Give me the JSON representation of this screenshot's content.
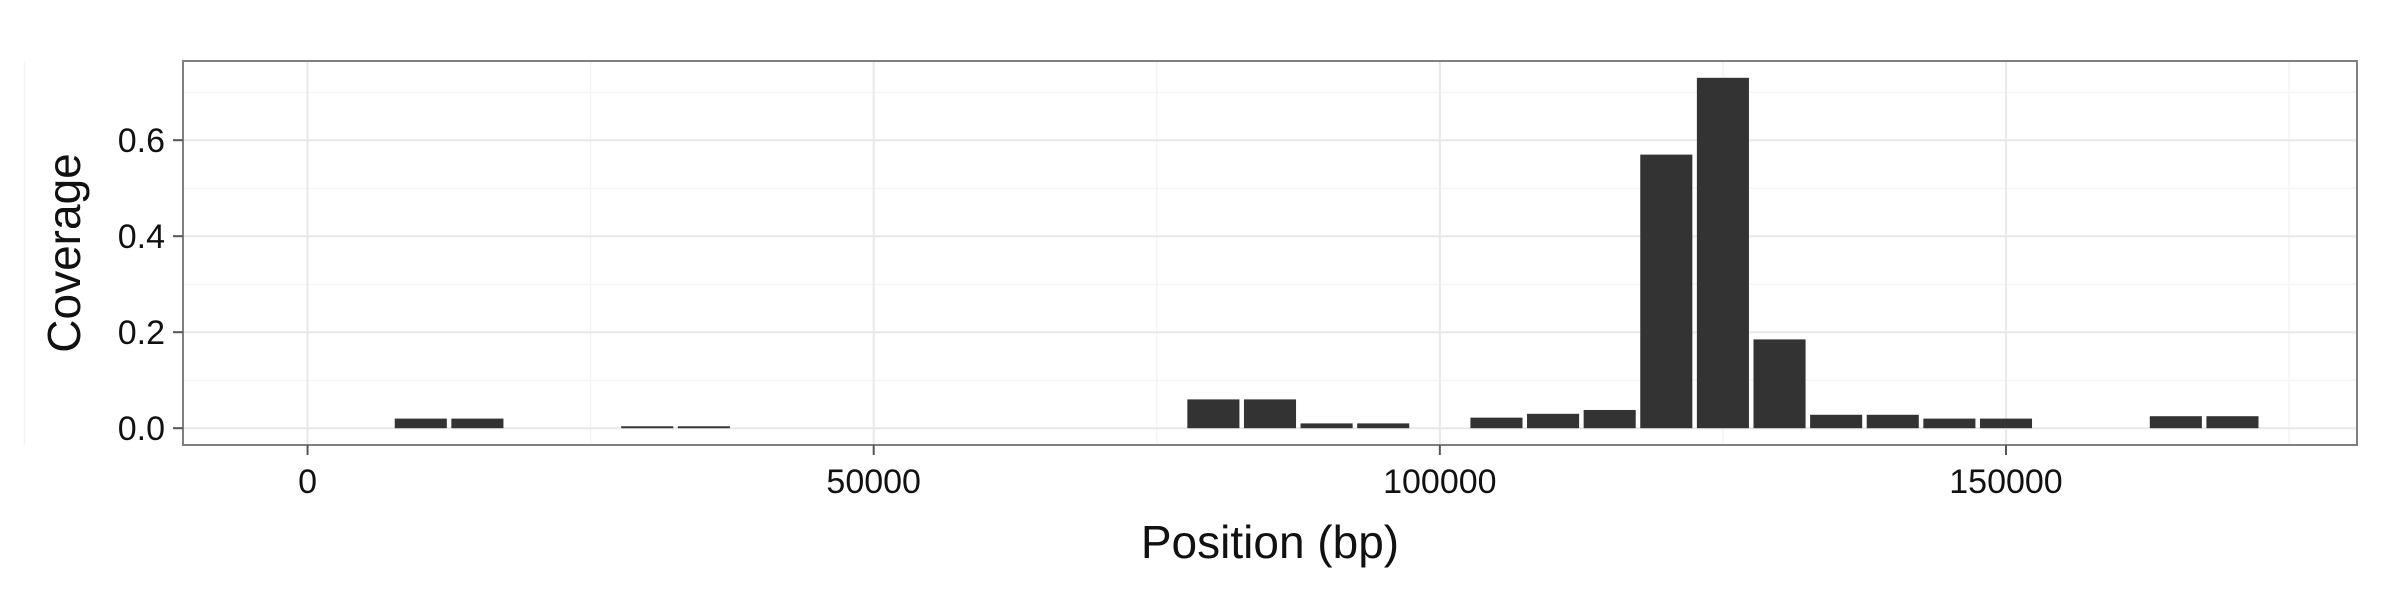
{
  "chart_data": {
    "type": "bar",
    "xlabel": "Position (bp)",
    "ylabel": "Coverage",
    "xlim": [
      -11000,
      181000
    ],
    "ylim": [
      -0.035,
      0.765
    ],
    "x_ticks": [
      0,
      50000,
      100000,
      150000
    ],
    "y_ticks": [
      0.0,
      0.2,
      0.4,
      0.6
    ],
    "x_tick_labels": [
      "0",
      "50000",
      "100000",
      "150000"
    ],
    "y_tick_labels": [
      "0.0",
      "0.2",
      "0.4",
      "0.6"
    ],
    "bar_width": 4600,
    "grid": true,
    "bar_color": "#333333",
    "x": [
      10000,
      15000,
      30000,
      35000,
      80000,
      85000,
      90000,
      95000,
      105000,
      110000,
      115000,
      120000,
      125000,
      130000,
      135000,
      140000,
      145000,
      150000,
      165000,
      170000
    ],
    "values": [
      0.02,
      0.02,
      0.004,
      0.004,
      0.06,
      0.06,
      0.01,
      0.01,
      0.022,
      0.03,
      0.038,
      0.57,
      0.73,
      0.185,
      0.028,
      0.028,
      0.02,
      0.02,
      0.025,
      0.025
    ]
  }
}
